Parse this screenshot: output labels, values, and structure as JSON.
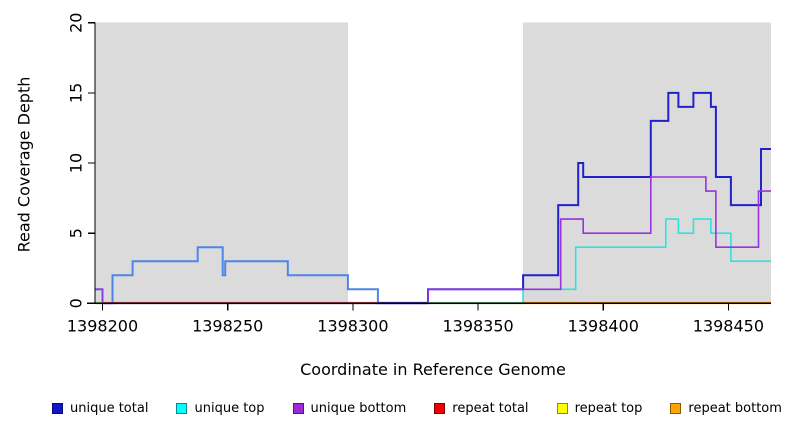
{
  "chart_data": {
    "type": "step-line",
    "title": "",
    "x_label": "Coordinate in Reference Genome",
    "y_label": "Read Coverage Depth",
    "xlim": [
      1398197,
      1398467
    ],
    "ylim": [
      0,
      20
    ],
    "x_ticks": [
      1398200,
      1398250,
      1398300,
      1398350,
      1398400,
      1398450
    ],
    "y_ticks": [
      0,
      5,
      10,
      15,
      20
    ],
    "grid": false,
    "panel_color": "#dbdbdb",
    "shaded_regions": [
      {
        "from": 1398197,
        "to": 1398298
      },
      {
        "from": 1398368,
        "to": 1398467
      }
    ],
    "series": [
      {
        "name": "repeat total",
        "color": "#e83a4e",
        "width": 1.4,
        "steps": [
          [
            1398197,
            0
          ],
          [
            1398467,
            0
          ]
        ]
      },
      {
        "name": "repeat top",
        "color": "#f5e93a",
        "width": 1.4,
        "steps": [
          [
            1398197,
            0
          ],
          [
            1398467,
            0
          ]
        ]
      },
      {
        "name": "repeat bottom",
        "color": "#ff9800",
        "width": 1.6,
        "steps": [
          [
            1398197,
            0
          ],
          [
            1398467,
            0
          ]
        ]
      },
      {
        "name": "unique top",
        "color": "#2ee2e2",
        "width": 1.6,
        "steps": [
          [
            1398197,
            0
          ],
          [
            1398368,
            1
          ],
          [
            1398389,
            4
          ],
          [
            1398425,
            6
          ],
          [
            1398430,
            5
          ],
          [
            1398436,
            6
          ],
          [
            1398443,
            5
          ],
          [
            1398451,
            3
          ],
          [
            1398467,
            3
          ]
        ]
      },
      {
        "name": "unique total",
        "color": "#2222cc",
        "width": 2,
        "split": {
          "coord": 1398330,
          "left_color": "#4c86e8",
          "right_color": "#2222cc"
        },
        "steps": [
          [
            1398197,
            1
          ],
          [
            1398200,
            0
          ],
          [
            1398204,
            2
          ],
          [
            1398212,
            3
          ],
          [
            1398238,
            4
          ],
          [
            1398248,
            2
          ],
          [
            1398249,
            3
          ],
          [
            1398274,
            2
          ],
          [
            1398298,
            1
          ],
          [
            1398310,
            0
          ],
          [
            1398330,
            1
          ],
          [
            1398368,
            2
          ],
          [
            1398382,
            7
          ],
          [
            1398390,
            10
          ],
          [
            1398392,
            9
          ],
          [
            1398419,
            13
          ],
          [
            1398426,
            15
          ],
          [
            1398430,
            14
          ],
          [
            1398436,
            15
          ],
          [
            1398443,
            14
          ],
          [
            1398445,
            9
          ],
          [
            1398451,
            7
          ],
          [
            1398463,
            11
          ],
          [
            1398467,
            11
          ]
        ]
      },
      {
        "name": "unique bottom",
        "color": "#9933dd",
        "width": 1.6,
        "steps": [
          [
            1398197,
            1
          ],
          [
            1398200,
            0
          ],
          [
            1398330,
            1
          ],
          [
            1398383,
            6
          ],
          [
            1398392,
            5
          ],
          [
            1398419,
            9
          ],
          [
            1398441,
            8
          ],
          [
            1398445,
            4
          ],
          [
            1398462,
            8
          ],
          [
            1398467,
            8
          ]
        ]
      }
    ],
    "baseline_overlay": [
      {
        "from": 1398197,
        "to": 1398200,
        "color": "#8fd98f"
      },
      {
        "from": 1398200,
        "to": 1398310,
        "color": "#e4506a"
      },
      {
        "from": 1398310,
        "to": 1398330,
        "color": "#4b39d2"
      },
      {
        "from": 1398330,
        "to": 1398368,
        "color": "#7fd9a6"
      },
      {
        "from": 1398368,
        "to": 1398467,
        "color": "#ff9800"
      }
    ]
  },
  "legend": {
    "items": [
      {
        "label": "unique total",
        "color": "#1414cc"
      },
      {
        "label": "unique top",
        "color": "#00ffff"
      },
      {
        "label": "unique bottom",
        "color": "#9a2bd9"
      },
      {
        "label": "repeat total",
        "color": "#ee0000"
      },
      {
        "label": "repeat top",
        "color": "#ffff00"
      },
      {
        "label": "repeat bottom",
        "color": "#ffa500"
      }
    ]
  }
}
